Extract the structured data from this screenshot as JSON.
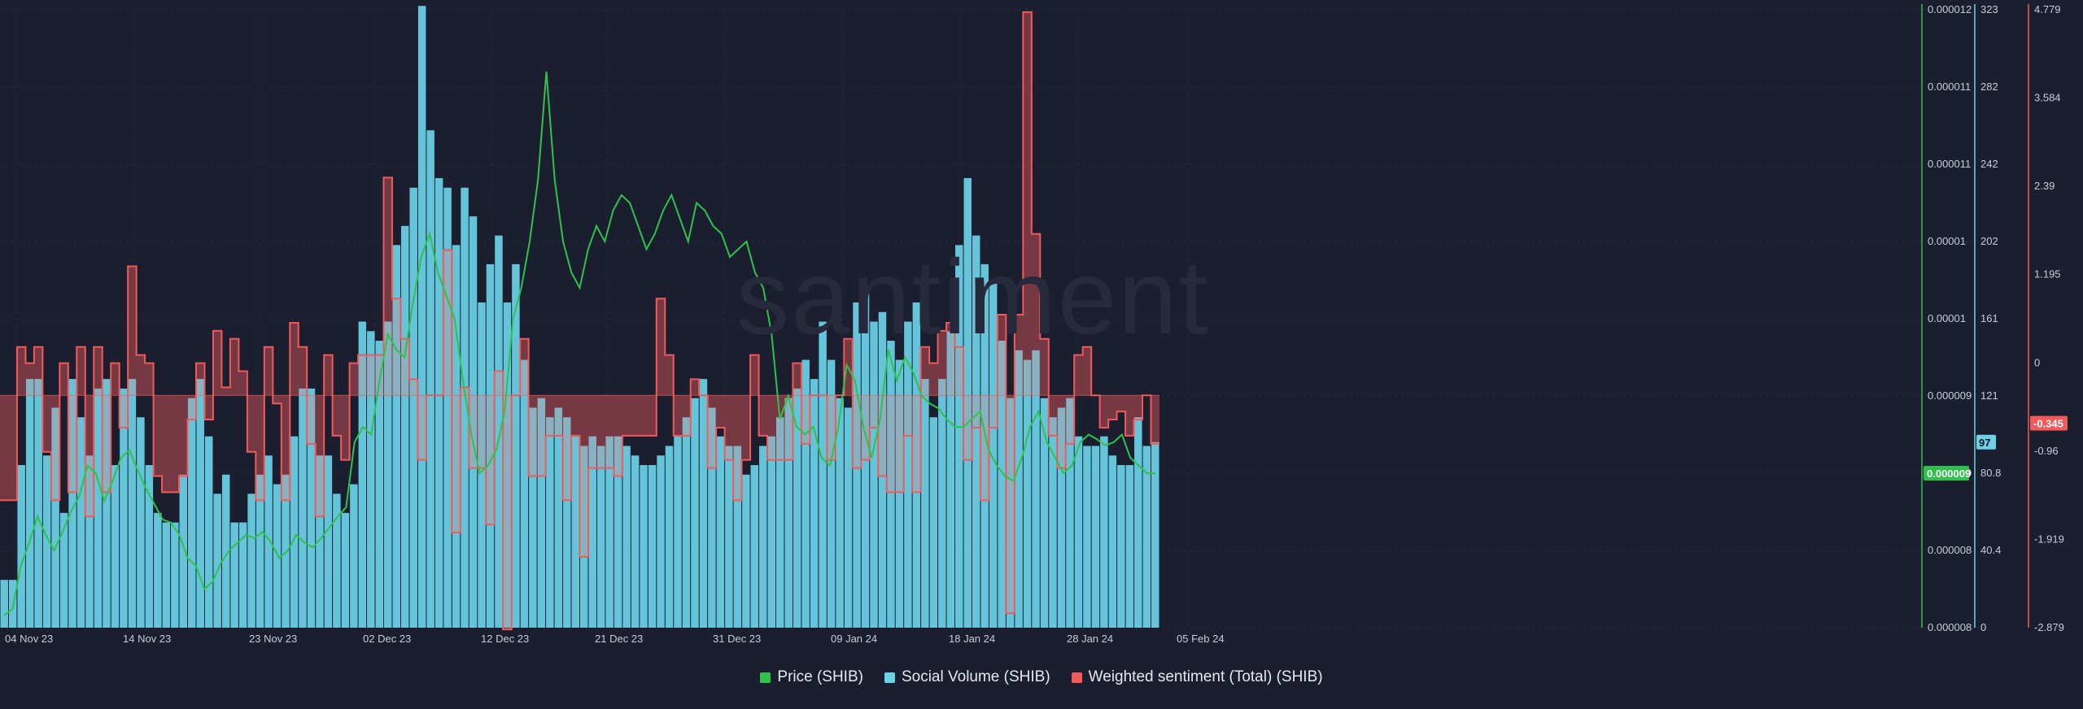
{
  "chart_data": {
    "type": "bar+line",
    "watermark": "santiment",
    "x_ticks": [
      "04 Nov 23",
      "14 Nov 23",
      "23 Nov 23",
      "02 Dec 23",
      "12 Dec 23",
      "21 Dec 23",
      "31 Dec 23",
      "09 Jan 24",
      "18 Jan 24",
      "28 Jan 24",
      "05 Feb 24"
    ],
    "price_axis": {
      "ticks": [
        "0.000012",
        "0.000011",
        "0.000011",
        "0.00001",
        "0.00001",
        "0.000009",
        "0.000009",
        "0.000008",
        "0.000008"
      ],
      "current": "0.000009",
      "color": "#2fc24a"
    },
    "volume_axis": {
      "ticks": [
        "323",
        "282",
        "242",
        "202",
        "161",
        "121",
        "80.8",
        "40.4",
        "0"
      ],
      "current": "97",
      "max": 323,
      "color": "#6ad3e8"
    },
    "sentiment_axis": {
      "ticks": [
        "4.779",
        "3.584",
        "2.39",
        "1.195",
        "0",
        "-0.96",
        "-1.919",
        "-2.879"
      ],
      "current": "-0.345",
      "min": -2.879,
      "max": 4.779,
      "color": "#f05a5a"
    },
    "series": [
      {
        "name": "Price (SHIB)",
        "color": "#2fc24a",
        "values": [
          8.08,
          8.12,
          8.4,
          8.55,
          8.72,
          8.6,
          8.5,
          8.62,
          8.75,
          8.85,
          9.05,
          9.0,
          8.82,
          8.95,
          9.1,
          9.15,
          9.02,
          8.9,
          8.8,
          8.7,
          8.68,
          8.6,
          8.45,
          8.4,
          8.25,
          8.3,
          8.42,
          8.5,
          8.55,
          8.6,
          8.58,
          8.62,
          8.55,
          8.45,
          8.5,
          8.6,
          8.55,
          8.52,
          8.58,
          8.65,
          8.72,
          8.78,
          9.2,
          9.3,
          9.25,
          9.6,
          9.9,
          9.8,
          9.75,
          10.1,
          10.4,
          10.55,
          10.3,
          10.15,
          10.0,
          9.6,
          9.25,
          9.0,
          9.05,
          9.15,
          9.4,
          10.0,
          10.2,
          10.5,
          10.9,
          11.6,
          10.9,
          10.5,
          10.3,
          10.2,
          10.45,
          10.6,
          10.5,
          10.7,
          10.8,
          10.75,
          10.6,
          10.45,
          10.55,
          10.7,
          10.8,
          10.65,
          10.5,
          10.75,
          10.7,
          10.6,
          10.55,
          10.4,
          10.45,
          10.5,
          10.3,
          10.2,
          9.9,
          9.35,
          9.5,
          9.3,
          9.25,
          9.3,
          9.1,
          9.05,
          9.3,
          9.7,
          9.6,
          9.3,
          9.1,
          9.35,
          9.8,
          9.6,
          9.75,
          9.65,
          9.5,
          9.45,
          9.42,
          9.35,
          9.3,
          9.3,
          9.35,
          9.4,
          9.15,
          9.05,
          8.98,
          8.95,
          9.1,
          9.3,
          9.4,
          9.2,
          9.1,
          9.0,
          9.05,
          9.2,
          9.25,
          9.22,
          9.18,
          9.2,
          9.25,
          9.1,
          9.05,
          9.0,
          9.0
        ]
      },
      {
        "name": "Social Volume (SHIB)",
        "color": "#6ad3e8",
        "values": [
          25,
          25,
          85,
          130,
          130,
          90,
          115,
          60,
          130,
          110,
          90,
          125,
          130,
          85,
          125,
          130,
          110,
          85,
          60,
          55,
          55,
          80,
          120,
          130,
          100,
          70,
          80,
          55,
          55,
          70,
          80,
          90,
          75,
          80,
          100,
          125,
          125,
          90,
          90,
          70,
          60,
          75,
          160,
          155,
          150,
          160,
          200,
          210,
          230,
          325,
          260,
          235,
          230,
          200,
          230,
          215,
          170,
          190,
          205,
          170,
          190,
          140,
          115,
          120,
          110,
          115,
          110,
          100,
          95,
          100,
          95,
          100,
          100,
          95,
          90,
          85,
          85,
          90,
          95,
          100,
          110,
          120,
          130,
          115,
          100,
          95,
          95,
          80,
          85,
          95,
          100,
          110,
          120,
          125,
          140,
          130,
          160,
          140,
          120,
          115,
          170,
          175,
          160,
          165,
          150,
          140,
          160,
          170,
          130,
          110,
          130,
          155,
          200,
          235,
          205,
          190,
          180,
          150,
          120,
          145,
          140,
          145,
          120,
          110,
          115,
          120,
          100,
          95,
          95,
          100,
          90,
          85,
          85,
          110,
          95,
          97
        ]
      },
      {
        "name": "Weighted sentiment (Total) (SHIB)",
        "color": "#f05a5a",
        "values": [
          -1.3,
          -1.3,
          0.6,
          0.4,
          0.6,
          -0.7,
          -1.3,
          0.4,
          -1.2,
          0.6,
          -1.5,
          0.6,
          -1.2,
          0.4,
          -0.4,
          1.6,
          0.5,
          0.4,
          -1.0,
          -1.2,
          -1.2,
          -1.0,
          -0.3,
          0.4,
          -0.3,
          0.8,
          0.1,
          0.7,
          0.3,
          -0.7,
          -1.3,
          0.6,
          -0.1,
          -1.3,
          0.9,
          0.6,
          -0.6,
          -1.5,
          0.5,
          -0.5,
          -0.8,
          0.4,
          0.5,
          0.5,
          0.5,
          2.7,
          1.2,
          0.7,
          0.2,
          -0.8,
          0.0,
          0.0,
          1.8,
          -1.7,
          0.1,
          -0.9,
          -0.9,
          -1.6,
          0.3,
          -2.9,
          0.0,
          0.7,
          -1.0,
          -1.0,
          -0.5,
          -0.5,
          -1.3,
          -0.5,
          -2.0,
          -0.9,
          -0.9,
          -0.9,
          -1.0,
          -0.5,
          -0.5,
          -0.5,
          -0.5,
          1.2,
          0.5,
          -0.5,
          -0.5,
          0.2,
          0.0,
          -0.9,
          -0.4,
          -0.8,
          -1.3,
          -0.8,
          0.5,
          -0.5,
          -0.8,
          -0.8,
          -0.8,
          0.4,
          -0.6,
          0.0,
          0.0,
          -0.8,
          0.0,
          0.7,
          -0.9,
          -0.8,
          -0.4,
          -1.0,
          -1.2,
          -1.2,
          -0.5,
          -1.2,
          0.6,
          0.4,
          0.8,
          0.9,
          0.6,
          -0.8,
          -0.4,
          -1.3,
          -0.4,
          1.0,
          -2.7,
          1.0,
          4.75,
          2.0,
          0.7,
          -0.5,
          -0.9,
          -0.6,
          0.5,
          0.6,
          0.0,
          -0.4,
          -0.3,
          -0.2,
          -0.5,
          -0.3,
          0.0,
          -0.6,
          -0.6,
          -0.6,
          -1.0,
          -0.2,
          -0.3
        ]
      }
    ]
  }
}
